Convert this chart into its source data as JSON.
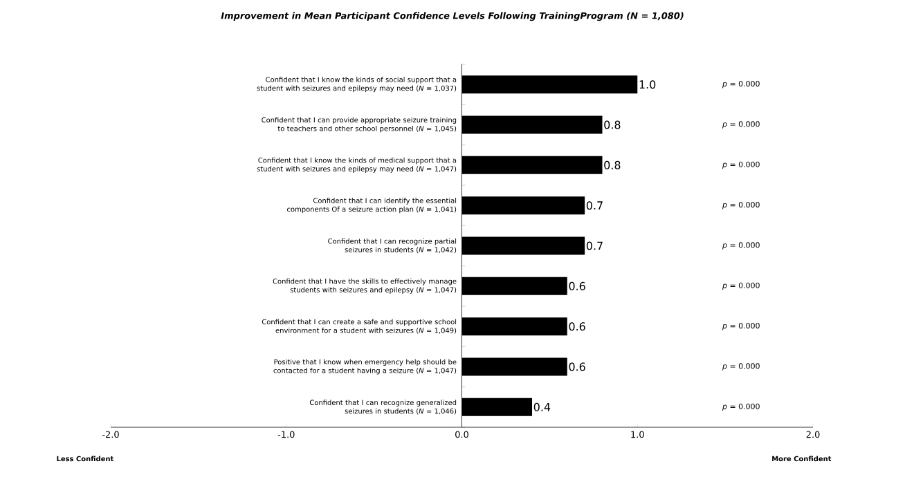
{
  "chart_data": {
    "type": "bar",
    "orientation": "horizontal",
    "title": "Improvement in Mean Participant Confidence Levels Following TrainingProgram (N = 1,080)",
    "categories": [
      "Confident that I know the kinds of social support that a student with seizures and epilepsy may need (*N* = 1,037)",
      "Confident that I can provide appropriate seizure training to teachers and other school personnel (*N* = 1,045)",
      "Confident that I know the kinds of medical support that a student with seizures and epilepsy may need (*N* = 1,047)",
      "Confident that I can identify the essential components Of a seizure action plan  (*N* = 1,041)",
      "Confident that I can recognize partial seizures in students (*N* = 1,042)",
      "Confident that I have the skills to effectively manage students with seizures and epilepsy (*N* = 1,047)",
      "Confident that I can create a safe and supportive school environment for a student with seizures (*N* = 1,049)",
      "Positive that I know when emergency help should be contacted for a student having a seizure (*N* = 1,047)",
      "Confident that I can recognize generalized seizures in students (*N* = 1,046)"
    ],
    "values": [
      1.0,
      0.8,
      0.8,
      0.7,
      0.7,
      0.6,
      0.6,
      0.6,
      0.4
    ],
    "color": "#000000",
    "value_labels": [
      "1.0",
      "0.8",
      "0.8",
      "0.7",
      "0.7",
      "0.6",
      "0.6",
      "0.6",
      "0.4"
    ],
    "xlim": [
      -2,
      2
    ],
    "xticks": [
      {
        "value": -2,
        "label": "-2.0"
      },
      {
        "value": -1,
        "label": "-1.0"
      },
      {
        "value": 0,
        "label": "0.0"
      },
      {
        "value": 1,
        "label": "1.0"
      },
      {
        "value": 2,
        "label": "2.0"
      }
    ],
    "annotations": [
      "*p* = 0.000",
      "*p* = 0.000",
      "*p* = 0.000",
      "*p* = 0.000",
      "*p* = 0.000",
      "*p* = 0.000",
      "*p* = 0.000",
      "*p* = 0.000",
      "*p* = 0.000",
      "Less Confident",
      "More Confident"
    ]
  }
}
